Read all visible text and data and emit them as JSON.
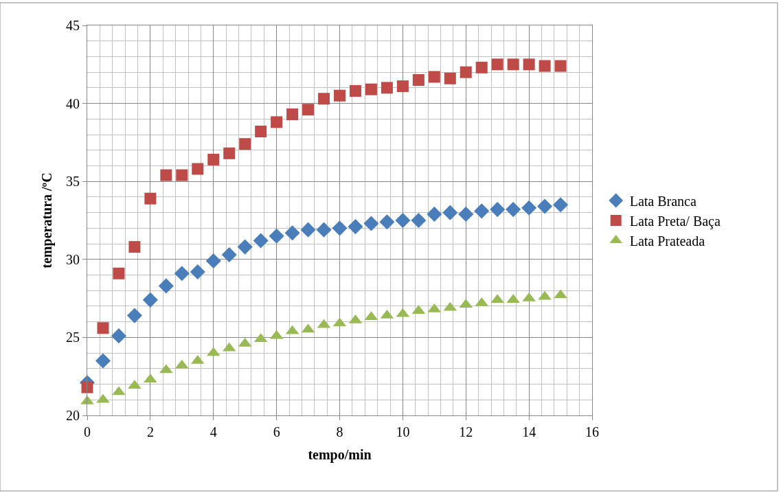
{
  "chart_data": {
    "type": "scatter",
    "xlabel": "tempo/min",
    "ylabel": "temperatura /ºC",
    "x": [
      0,
      0.5,
      1,
      1.5,
      2,
      2.5,
      3,
      3.5,
      4,
      4.5,
      5,
      5.5,
      6,
      6.5,
      7,
      7.5,
      8,
      8.5,
      9,
      9.5,
      10,
      10.5,
      11,
      11.5,
      12,
      12.5,
      13,
      13.5,
      14,
      14.5,
      15
    ],
    "series": [
      {
        "name": "Lata Branca",
        "color": "#4a7ebb",
        "marker": "diamond",
        "values": [
          22.1,
          23.5,
          25.1,
          26.4,
          27.4,
          28.3,
          29.1,
          29.2,
          29.9,
          30.3,
          30.8,
          31.2,
          31.5,
          31.7,
          31.9,
          31.9,
          32.0,
          32.1,
          32.3,
          32.4,
          32.5,
          32.5,
          32.9,
          33.0,
          32.9,
          33.1,
          33.2,
          33.2,
          33.3,
          33.4,
          33.5
        ]
      },
      {
        "name": "Lata Preta/ Baça",
        "color": "#be4b48",
        "marker": "square",
        "values": [
          21.8,
          25.6,
          29.1,
          30.8,
          33.9,
          35.4,
          35.4,
          35.8,
          36.4,
          36.8,
          37.4,
          38.2,
          38.8,
          39.3,
          39.6,
          40.3,
          40.5,
          40.8,
          40.9,
          41.0,
          41.1,
          41.5,
          41.7,
          41.6,
          42.0,
          42.3,
          42.5,
          42.5,
          42.5,
          42.4,
          42.4
        ]
      },
      {
        "name": "Lata Prateada",
        "color": "#98b954",
        "marker": "triangle",
        "values": [
          20.9,
          21.0,
          21.5,
          21.9,
          22.3,
          22.9,
          23.2,
          23.5,
          24.0,
          24.3,
          24.6,
          24.9,
          25.1,
          25.4,
          25.5,
          25.8,
          25.9,
          26.1,
          26.3,
          26.4,
          26.5,
          26.7,
          26.8,
          26.9,
          27.1,
          27.2,
          27.4,
          27.4,
          27.5,
          27.6,
          27.7
        ]
      }
    ],
    "xlim": [
      0,
      16
    ],
    "xticks": [
      0,
      2,
      4,
      6,
      8,
      10,
      12,
      14,
      16
    ],
    "ylim": [
      20,
      45
    ],
    "yticks": [
      20,
      25,
      30,
      35,
      40,
      45
    ],
    "grid": true,
    "legend": "right"
  }
}
